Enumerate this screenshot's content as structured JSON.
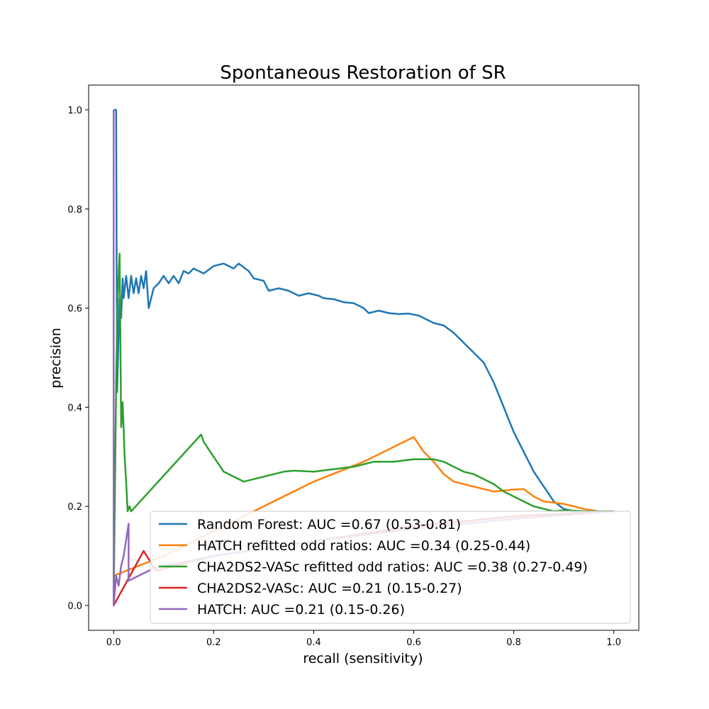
{
  "chart_data": {
    "type": "line",
    "title": "Spontaneous Restoration of SR",
    "xlabel": "recall (sensitivity)",
    "ylabel": "precision",
    "xlim": [
      -0.05,
      1.05
    ],
    "ylim": [
      -0.05,
      1.05
    ],
    "xticks": [
      0.0,
      0.2,
      0.4,
      0.6,
      0.8,
      1.0
    ],
    "yticks": [
      0.0,
      0.2,
      0.4,
      0.6,
      0.8,
      1.0
    ],
    "grid": false,
    "legend_position": "lower-right",
    "series": [
      {
        "name": "Random Forest: AUC =0.67 (0.53-0.81)",
        "color": "#1f77b4",
        "points": [
          [
            0.0,
            1.0
          ],
          [
            0.005,
            1.0
          ],
          [
            0.007,
            0.43
          ],
          [
            0.01,
            0.55
          ],
          [
            0.012,
            0.62
          ],
          [
            0.015,
            0.58
          ],
          [
            0.018,
            0.66
          ],
          [
            0.02,
            0.62
          ],
          [
            0.025,
            0.665
          ],
          [
            0.03,
            0.62
          ],
          [
            0.035,
            0.665
          ],
          [
            0.04,
            0.63
          ],
          [
            0.045,
            0.66
          ],
          [
            0.05,
            0.63
          ],
          [
            0.055,
            0.665
          ],
          [
            0.06,
            0.64
          ],
          [
            0.065,
            0.675
          ],
          [
            0.07,
            0.6
          ],
          [
            0.075,
            0.62
          ],
          [
            0.08,
            0.64
          ],
          [
            0.09,
            0.65
          ],
          [
            0.1,
            0.665
          ],
          [
            0.11,
            0.65
          ],
          [
            0.12,
            0.665
          ],
          [
            0.13,
            0.65
          ],
          [
            0.14,
            0.675
          ],
          [
            0.15,
            0.67
          ],
          [
            0.16,
            0.68
          ],
          [
            0.18,
            0.67
          ],
          [
            0.2,
            0.685
          ],
          [
            0.22,
            0.69
          ],
          [
            0.24,
            0.68
          ],
          [
            0.25,
            0.69
          ],
          [
            0.27,
            0.675
          ],
          [
            0.28,
            0.66
          ],
          [
            0.3,
            0.655
          ],
          [
            0.31,
            0.635
          ],
          [
            0.33,
            0.64
          ],
          [
            0.35,
            0.635
          ],
          [
            0.37,
            0.625
          ],
          [
            0.39,
            0.63
          ],
          [
            0.41,
            0.625
          ],
          [
            0.42,
            0.62
          ],
          [
            0.44,
            0.618
          ],
          [
            0.46,
            0.612
          ],
          [
            0.48,
            0.61
          ],
          [
            0.5,
            0.6
          ],
          [
            0.51,
            0.59
          ],
          [
            0.53,
            0.595
          ],
          [
            0.55,
            0.59
          ],
          [
            0.57,
            0.588
          ],
          [
            0.59,
            0.589
          ],
          [
            0.61,
            0.585
          ],
          [
            0.62,
            0.58
          ],
          [
            0.64,
            0.57
          ],
          [
            0.66,
            0.565
          ],
          [
            0.68,
            0.55
          ],
          [
            0.7,
            0.53
          ],
          [
            0.72,
            0.51
          ],
          [
            0.74,
            0.49
          ],
          [
            0.76,
            0.45
          ],
          [
            0.78,
            0.4
          ],
          [
            0.8,
            0.35
          ],
          [
            0.82,
            0.31
          ],
          [
            0.84,
            0.27
          ],
          [
            0.86,
            0.24
          ],
          [
            0.88,
            0.21
          ],
          [
            0.9,
            0.195
          ],
          [
            0.92,
            0.19
          ],
          [
            0.95,
            0.19
          ],
          [
            1.0,
            0.19
          ]
        ]
      },
      {
        "name": "HATCH refitted odd ratios: AUC =0.34 (0.25-0.44)",
        "color": "#ff7f0e",
        "points": [
          [
            0.0,
            0.06
          ],
          [
            0.05,
            0.08
          ],
          [
            0.1,
            0.1
          ],
          [
            0.2,
            0.15
          ],
          [
            0.3,
            0.2
          ],
          [
            0.4,
            0.25
          ],
          [
            0.5,
            0.29
          ],
          [
            0.6,
            0.34
          ],
          [
            0.62,
            0.31
          ],
          [
            0.64,
            0.29
          ],
          [
            0.66,
            0.265
          ],
          [
            0.68,
            0.25
          ],
          [
            0.7,
            0.245
          ],
          [
            0.72,
            0.24
          ],
          [
            0.74,
            0.235
          ],
          [
            0.76,
            0.23
          ],
          [
            0.78,
            0.232
          ],
          [
            0.8,
            0.234
          ],
          [
            0.82,
            0.235
          ],
          [
            0.84,
            0.22
          ],
          [
            0.86,
            0.21
          ],
          [
            0.9,
            0.205
          ],
          [
            0.94,
            0.195
          ],
          [
            0.97,
            0.19
          ],
          [
            1.0,
            0.19
          ]
        ]
      },
      {
        "name": "CHA2DS2-VASc refitted odd ratios: AUC =0.38 (0.27-0.49)",
        "color": "#2ca02c",
        "points": [
          [
            0.0,
            0.0
          ],
          [
            0.005,
            0.45
          ],
          [
            0.008,
            0.62
          ],
          [
            0.012,
            0.71
          ],
          [
            0.015,
            0.36
          ],
          [
            0.018,
            0.41
          ],
          [
            0.022,
            0.3
          ],
          [
            0.025,
            0.25
          ],
          [
            0.028,
            0.19
          ],
          [
            0.032,
            0.2
          ],
          [
            0.035,
            0.19
          ],
          [
            0.175,
            0.345
          ],
          [
            0.18,
            0.33
          ],
          [
            0.2,
            0.3
          ],
          [
            0.22,
            0.27
          ],
          [
            0.24,
            0.26
          ],
          [
            0.26,
            0.25
          ],
          [
            0.28,
            0.255
          ],
          [
            0.3,
            0.26
          ],
          [
            0.32,
            0.265
          ],
          [
            0.34,
            0.27
          ],
          [
            0.36,
            0.272
          ],
          [
            0.4,
            0.27
          ],
          [
            0.44,
            0.275
          ],
          [
            0.48,
            0.28
          ],
          [
            0.52,
            0.29
          ],
          [
            0.56,
            0.29
          ],
          [
            0.6,
            0.295
          ],
          [
            0.64,
            0.295
          ],
          [
            0.66,
            0.29
          ],
          [
            0.68,
            0.28
          ],
          [
            0.7,
            0.27
          ],
          [
            0.72,
            0.265
          ],
          [
            0.74,
            0.255
          ],
          [
            0.76,
            0.245
          ],
          [
            0.78,
            0.23
          ],
          [
            0.8,
            0.22
          ],
          [
            0.82,
            0.21
          ],
          [
            0.84,
            0.2
          ],
          [
            0.86,
            0.195
          ],
          [
            0.88,
            0.19
          ],
          [
            0.9,
            0.192
          ],
          [
            0.95,
            0.19
          ],
          [
            1.0,
            0.19
          ]
        ]
      },
      {
        "name": "CHA2DS2-VASc: AUC =0.21 (0.15-0.27)",
        "color": "#d62728",
        "points": [
          [
            0.0,
            0.0
          ],
          [
            0.03,
            0.055
          ],
          [
            0.06,
            0.11
          ],
          [
            0.085,
            0.07
          ],
          [
            0.2,
            0.1
          ],
          [
            0.4,
            0.13
          ],
          [
            0.6,
            0.16
          ],
          [
            0.8,
            0.18
          ],
          [
            1.0,
            0.19
          ]
        ]
      },
      {
        "name": "HATCH: AUC =0.21 (0.15-0.26)",
        "color": "#9467bd",
        "points": [
          [
            0.0,
            1.0
          ],
          [
            0.0,
            0.0
          ],
          [
            0.005,
            0.06
          ],
          [
            0.01,
            0.04
          ],
          [
            0.015,
            0.08
          ],
          [
            0.02,
            0.1
          ],
          [
            0.03,
            0.165
          ],
          [
            0.03,
            0.05
          ],
          [
            0.08,
            0.075
          ],
          [
            0.2,
            0.1
          ],
          [
            0.4,
            0.13
          ],
          [
            0.6,
            0.155
          ],
          [
            0.8,
            0.175
          ],
          [
            1.0,
            0.19
          ]
        ]
      }
    ]
  }
}
